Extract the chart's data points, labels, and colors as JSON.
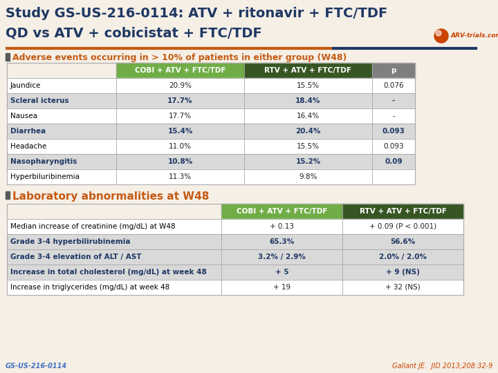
{
  "title_line1": "Study GS-US-216-0114: ATV + ritonavir + FTC/TDF",
  "title_line2": "QD vs ATV + cobicistat + FTC/TDF",
  "title_color": "#1F3864",
  "bg_color": "#F5EFE6",
  "section1_label": "Adverse events occurring in > 10% of patients in either group (W48)",
  "section2_label": "Laboratory abnormalities at W48",
  "section_color": "#C55A11",
  "cobi_header": "COBI + ATV + FTC/TDF",
  "rtv_header": "RTV + ATV + FTC/TDF",
  "p_header": "p",
  "cobi_header_bg": "#70AD47",
  "rtv_header_bg": "#375623",
  "p_header_bg": "#7F7F7F",
  "header_text_color": "#FFFFFF",
  "table1_rows": [
    [
      "Jaundice",
      "20.9%",
      "15.5%",
      "0.076"
    ],
    [
      "Scleral icterus",
      "17.7%",
      "18.4%",
      "-"
    ],
    [
      "Nausea",
      "17.7%",
      "16.4%",
      "-"
    ],
    [
      "Diarrhea",
      "15.4%",
      "20.4%",
      "0.093"
    ],
    [
      "Headache",
      "11.0%",
      "15.5%",
      "0.093"
    ],
    [
      "Nasopharyngitis",
      "10.8%",
      "15.2%",
      "0.09"
    ],
    [
      "Hyperbiluribinemia",
      "11.3%",
      "9.8%",
      ""
    ]
  ],
  "table1_row_colors": [
    "#FFFFFF",
    "#D9D9D9",
    "#FFFFFF",
    "#D9D9D9",
    "#FFFFFF",
    "#D9D9D9",
    "#FFFFFF"
  ],
  "table1_name_bold": [
    false,
    true,
    false,
    true,
    false,
    true,
    false
  ],
  "table1_name_color": [
    "#000000",
    "#1F3864",
    "#000000",
    "#1F3864",
    "#000000",
    "#1F3864",
    "#000000"
  ],
  "table1_val_color": "#1F3864",
  "table2_rows": [
    [
      "Median increase of creatinine (mg/dL) at W48",
      "+ 0.13",
      "+ 0.09 (P < 0.001)"
    ],
    [
      "Grade 3-4 hyperbilirubinemia",
      "65.3%",
      "56.6%"
    ],
    [
      "Grade 3-4 elevation of ALT / AST",
      "3.2% / 2.9%",
      "2.0% / 2.0%"
    ],
    [
      "Increase in total cholesterol (mg/dL) at week 48",
      "+ 5",
      "+ 9 (NS)"
    ],
    [
      "Increase in triglycerides (mg/dL) at week 48",
      "+ 19",
      "+ 32 (NS)"
    ]
  ],
  "table2_row_colors": [
    "#FFFFFF",
    "#D9D9D9",
    "#D9D9D9",
    "#D9D9D9",
    "#FFFFFF"
  ],
  "table2_name_bold": [
    false,
    true,
    true,
    true,
    false
  ],
  "table2_name_color": [
    "#000000",
    "#1F3864",
    "#1F3864",
    "#1F3864",
    "#000000"
  ],
  "footer_left": "GS-US-216-0114",
  "footer_right": "Gallant JE.  JID 2013;208:32-9",
  "footer_color": "#4472C4",
  "orange_line_color": "#C55A11",
  "blue_line_color": "#1F3864",
  "bullet_color": "#595959"
}
